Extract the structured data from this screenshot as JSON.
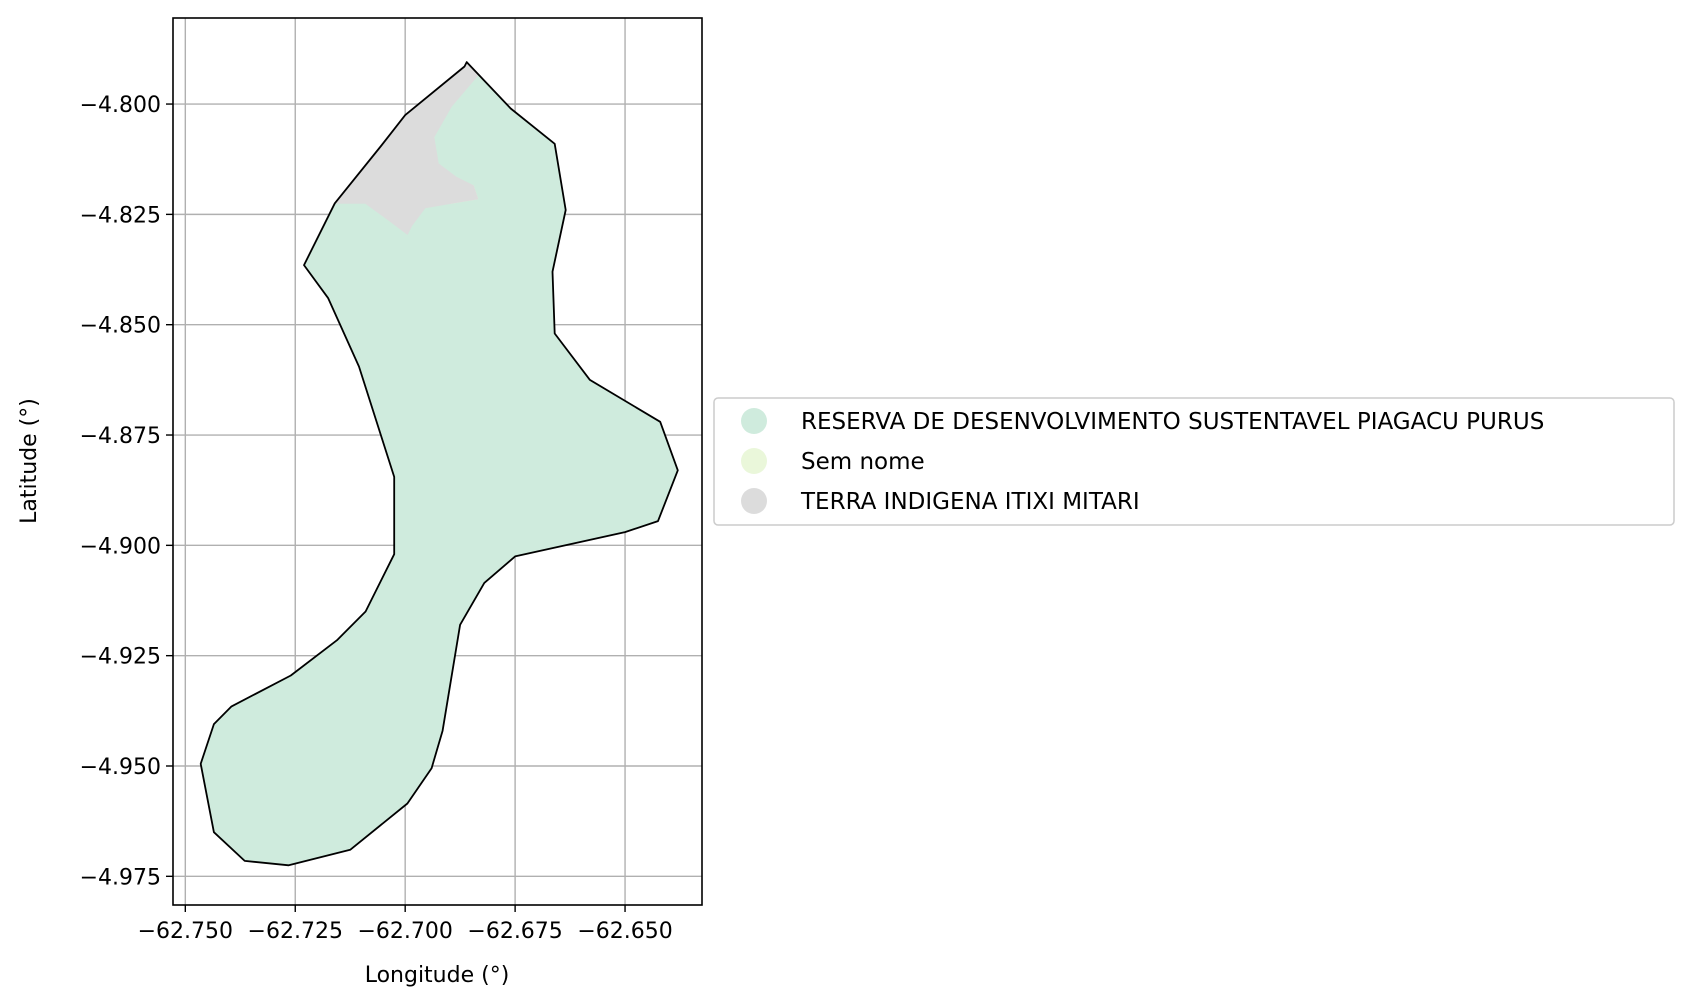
{
  "chart_data": {
    "type": "map",
    "xlabel": "Longitude (°)",
    "ylabel": "Latitude (°)",
    "xlim": [
      -62.7528,
      -62.6325
    ],
    "ylim": [
      -4.9815,
      -4.7805
    ],
    "grid": true,
    "x_ticks": [
      -62.75,
      -62.725,
      -62.7,
      -62.675,
      -62.65
    ],
    "x_tick_labels": [
      "−62.750",
      "−62.725",
      "−62.700",
      "−62.675",
      "−62.650"
    ],
    "y_ticks": [
      -4.8,
      -4.825,
      -4.85,
      -4.875,
      -4.9,
      -4.925,
      -4.95,
      -4.975
    ],
    "y_tick_labels": [
      "−4.800",
      "−4.825",
      "−4.850",
      "−4.875",
      "−4.900",
      "−4.925",
      "−4.950",
      "−4.975"
    ],
    "legend": {
      "placement": "center-left outside",
      "entries": [
        {
          "name": "RESERVA DE DESENVOLVIMENTO SUSTENTAVEL PIAGACU PURUS",
          "color": "#cfebdd"
        },
        {
          "name": "Sem nome",
          "color": "#eaf7da"
        },
        {
          "name": "TERRA INDIGENA ITIXI MITARI",
          "color": "#dcdcdc"
        }
      ]
    },
    "regions": [
      {
        "name": "RESERVA DE DESENVOLVIMENTO SUSTENTAVEL PIAGACU PURUS",
        "color": "#cfebdd",
        "coords": [
          [
            -62.686,
            -4.7905
          ],
          [
            -62.676,
            -4.801
          ],
          [
            -62.666,
            -4.809
          ],
          [
            -62.6635,
            -4.824
          ],
          [
            -62.6665,
            -4.838
          ],
          [
            -62.666,
            -4.852
          ],
          [
            -62.658,
            -4.8625
          ],
          [
            -62.642,
            -4.872
          ],
          [
            -62.638,
            -4.883
          ],
          [
            -62.6425,
            -4.8945
          ],
          [
            -62.65,
            -4.897
          ],
          [
            -62.675,
            -4.9025
          ],
          [
            -62.682,
            -4.9085
          ],
          [
            -62.6875,
            -4.918
          ],
          [
            -62.6915,
            -4.942
          ],
          [
            -62.694,
            -4.9505
          ],
          [
            -62.6995,
            -4.9585
          ],
          [
            -62.7125,
            -4.969
          ],
          [
            -62.7265,
            -4.9725
          ],
          [
            -62.7365,
            -4.9715
          ],
          [
            -62.7435,
            -4.965
          ],
          [
            -62.7465,
            -4.9495
          ],
          [
            -62.7435,
            -4.9405
          ],
          [
            -62.7395,
            -4.9365
          ],
          [
            -62.726,
            -4.9295
          ],
          [
            -62.7155,
            -4.9215
          ],
          [
            -62.709,
            -4.915
          ],
          [
            -62.7025,
            -4.902
          ],
          [
            -62.7025,
            -4.8845
          ],
          [
            -62.7105,
            -4.8595
          ],
          [
            -62.7175,
            -4.844
          ],
          [
            -62.723,
            -4.8365
          ],
          [
            -62.716,
            -4.8225
          ],
          [
            -62.7055,
            -4.8095
          ],
          [
            -62.7,
            -4.8025
          ],
          [
            -62.6865,
            -4.7915
          ],
          [
            -62.686,
            -4.7905
          ]
        ]
      },
      {
        "name": "Sem nome",
        "color": "#eaf7da",
        "coords": [
          [
            -62.6845,
            -4.7935
          ],
          [
            -62.6905,
            -4.8005
          ],
          [
            -62.6935,
            -4.8075
          ],
          [
            -62.6935,
            -4.8135
          ],
          [
            -62.6915,
            -4.816
          ],
          [
            -62.6845,
            -4.8185
          ],
          [
            -62.6835,
            -4.8215
          ],
          [
            -62.6895,
            -4.8225
          ],
          [
            -62.6945,
            -4.8185
          ],
          [
            -62.6955,
            -4.8105
          ],
          [
            -62.6935,
            -4.8025
          ],
          [
            -62.6875,
            -4.7955
          ],
          [
            -62.6845,
            -4.7935
          ]
        ]
      },
      {
        "name": "TERRA INDIGENA ITIXI MITARI",
        "color": "#dcdcdc",
        "coords": [
          [
            -62.686,
            -4.7905
          ],
          [
            -62.6835,
            -4.7935
          ],
          [
            -62.6895,
            -4.8005
          ],
          [
            -62.6935,
            -4.8075
          ],
          [
            -62.6925,
            -4.8135
          ],
          [
            -62.6885,
            -4.8165
          ],
          [
            -62.6845,
            -4.8185
          ],
          [
            -62.6835,
            -4.8215
          ],
          [
            -62.6895,
            -4.8225
          ],
          [
            -62.6955,
            -4.8235
          ],
          [
            -62.6985,
            -4.8275
          ],
          [
            -62.6995,
            -4.8295
          ],
          [
            -62.7035,
            -4.8265
          ],
          [
            -62.709,
            -4.8225
          ],
          [
            -62.716,
            -4.8225
          ],
          [
            -62.7055,
            -4.8095
          ],
          [
            -62.7,
            -4.8025
          ],
          [
            -62.6865,
            -4.7915
          ],
          [
            -62.686,
            -4.7905
          ]
        ]
      }
    ],
    "outline": {
      "color": "#000000",
      "coords": [
        [
          -62.686,
          -4.7905
        ],
        [
          -62.676,
          -4.801
        ],
        [
          -62.666,
          -4.809
        ],
        [
          -62.6635,
          -4.824
        ],
        [
          -62.6665,
          -4.838
        ],
        [
          -62.666,
          -4.852
        ],
        [
          -62.658,
          -4.8625
        ],
        [
          -62.642,
          -4.872
        ],
        [
          -62.638,
          -4.883
        ],
        [
          -62.6425,
          -4.8945
        ],
        [
          -62.65,
          -4.897
        ],
        [
          -62.675,
          -4.9025
        ],
        [
          -62.682,
          -4.9085
        ],
        [
          -62.6875,
          -4.918
        ],
        [
          -62.6915,
          -4.942
        ],
        [
          -62.694,
          -4.9505
        ],
        [
          -62.6995,
          -4.9585
        ],
        [
          -62.7125,
          -4.969
        ],
        [
          -62.7265,
          -4.9725
        ],
        [
          -62.7365,
          -4.9715
        ],
        [
          -62.7435,
          -4.965
        ],
        [
          -62.7465,
          -4.9495
        ],
        [
          -62.7435,
          -4.9405
        ],
        [
          -62.7395,
          -4.9365
        ],
        [
          -62.726,
          -4.9295
        ],
        [
          -62.7155,
          -4.9215
        ],
        [
          -62.709,
          -4.915
        ],
        [
          -62.7025,
          -4.902
        ],
        [
          -62.7025,
          -4.8845
        ],
        [
          -62.7105,
          -4.8595
        ],
        [
          -62.7175,
          -4.844
        ],
        [
          -62.723,
          -4.8365
        ],
        [
          -62.716,
          -4.8225
        ],
        [
          -62.7055,
          -4.8095
        ],
        [
          -62.7,
          -4.8025
        ],
        [
          -62.6865,
          -4.7915
        ],
        [
          -62.686,
          -4.7905
        ]
      ]
    },
    "colors": {
      "grid": "#b0b0b0",
      "axes": "#000000",
      "legend_border": "#cccccc"
    }
  }
}
